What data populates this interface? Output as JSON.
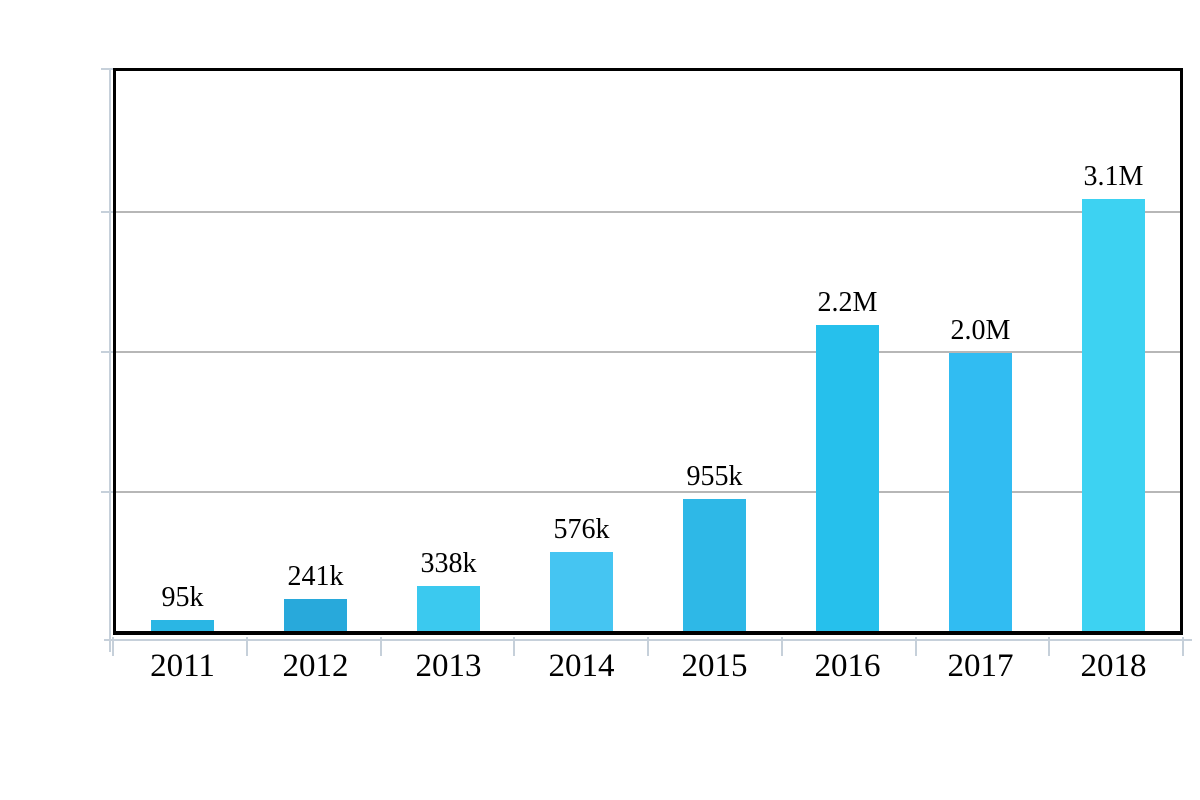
{
  "chart_data": {
    "type": "bar",
    "title": "",
    "xlabel": "",
    "ylabel": "",
    "legend_position": "none",
    "grid_on": true,
    "categories": [
      "2011",
      "2012",
      "2013",
      "2014",
      "2015",
      "2016",
      "2017",
      "2018"
    ],
    "values": [
      95000,
      241000,
      338000,
      576000,
      955000,
      2200000,
      2000000,
      3100000
    ],
    "value_labels": [
      "95k",
      "241k",
      "338k",
      "576k",
      "955k",
      "2.2M",
      "2.0M",
      "3.1M"
    ],
    "bar_colors": [
      "#2ab6e4",
      "#28a9db",
      "#3bc9ef",
      "#45c5f2",
      "#2eb8e7",
      "#26c0ec",
      "#31bcf2",
      "#3dd2f2"
    ],
    "ylim": [
      0,
      4050000
    ],
    "gridline_values": [
      1000000,
      2000000,
      3000000
    ],
    "colors": {
      "frame": "#000000",
      "grid": "#b7b7b7",
      "tick": "#c6d0da",
      "text": "#000000",
      "background": "#ffffff"
    }
  }
}
